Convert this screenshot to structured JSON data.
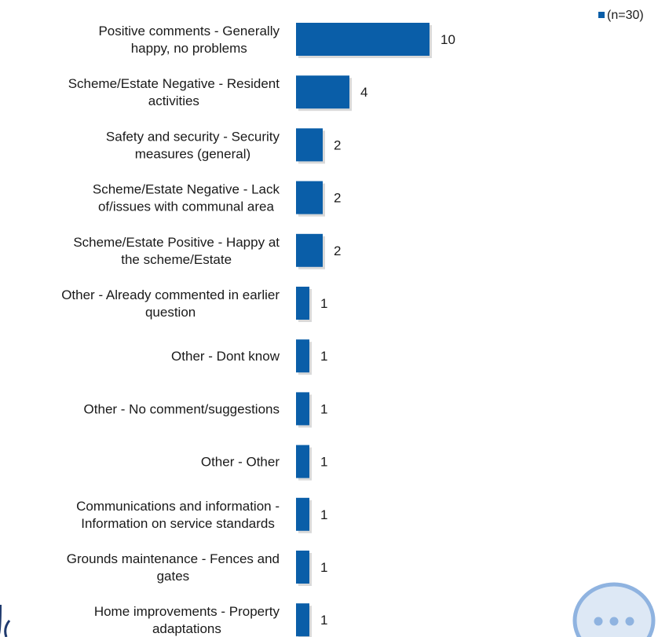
{
  "chart_data": {
    "type": "bar",
    "orientation": "horizontal",
    "categories": [
      "Positive comments - Generally happy, no problems",
      "Scheme/Estate Negative - Resident activities",
      "Safety and security - Security measures (general)",
      "Scheme/Estate Negative - Lack of/issues with communal area",
      "Scheme/Estate Positive - Happy at the scheme/Estate",
      "Other - Already commented in earlier question",
      "Other - Dont know",
      "Other - No comment/suggestions",
      "Other - Other",
      "Communications and information - Information on service standards",
      "Grounds maintenance - Fences and gates",
      "Home improvements - Property adaptations"
    ],
    "label_lines": [
      [
        "Positive comments - Generally",
        "happy, no problems"
      ],
      [
        "Scheme/Estate Negative - Resident",
        "activities"
      ],
      [
        "Safety and security - Security",
        "measures (general)"
      ],
      [
        "Scheme/Estate Negative - Lack",
        "of/issues with communal area"
      ],
      [
        "Scheme/Estate Positive - Happy at",
        "the scheme/Estate"
      ],
      [
        "Other - Already commented in earlier",
        "question"
      ],
      [
        "Other - Dont know"
      ],
      [
        "Other - No comment/suggestions"
      ],
      [
        "Other - Other"
      ],
      [
        "Communications and information -",
        "Information on service standards"
      ],
      [
        "Grounds maintenance - Fences and",
        "gates"
      ],
      [
        "Home improvements - Property",
        "adaptations"
      ]
    ],
    "series": [
      {
        "name": "(n=30)",
        "values": [
          10,
          4,
          2,
          2,
          2,
          1,
          1,
          1,
          1,
          1,
          1,
          1
        ],
        "color": "#0a5ea8"
      }
    ],
    "data_labels": true,
    "xlim": [
      0,
      10
    ],
    "grid": false,
    "legend": "top-right"
  },
  "colors": {
    "bar": "#0a5ea8",
    "decoration_border": "#1f3a6e",
    "bubble_fill": "#dde8f5",
    "bubble_stroke": "#8fb3e0",
    "bubble_dots": "#8fb3e0"
  },
  "decorations": {
    "bubble_icon": "speech-bubble-icon"
  }
}
